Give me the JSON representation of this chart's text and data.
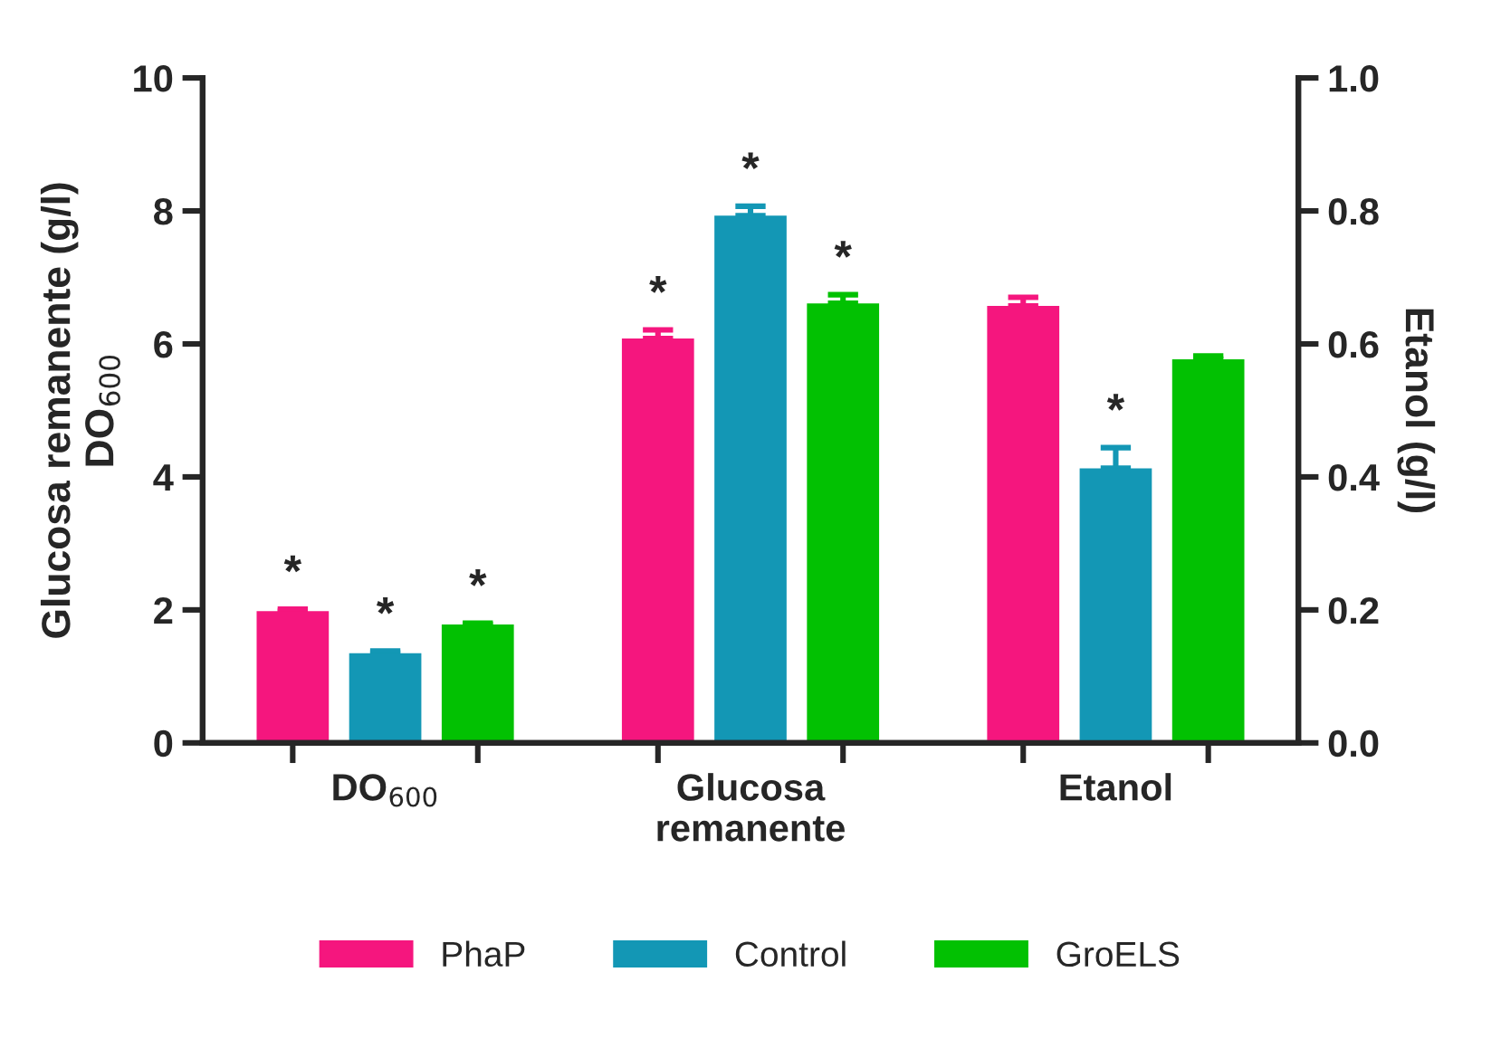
{
  "chart_data": {
    "type": "bar",
    "categories": [
      "DO$_{600}$",
      "Glucosa\nremanente",
      "Etanol"
    ],
    "ylabel": "Glucosa remanente (g/l)\nDO$_{600}$",
    "y2label": "Etanol (g/l)",
    "ylim": [
      0,
      10
    ],
    "yticks": [
      0,
      2,
      4,
      6,
      8,
      10
    ],
    "y2lim": [
      0,
      1.0
    ],
    "y2ticks": [
      {
        "value": 0,
        "label": "0.0"
      },
      0.2,
      0.4,
      0.6,
      0.8,
      {
        "value": 1.0,
        "label": "1.0"
      }
    ],
    "legend": "bottom",
    "grid": false,
    "series": [
      {
        "name": "PhaP",
        "color": "#f5167e",
        "values": [
          1.98,
          6.08,
          null
        ],
        "errors": [
          0.03,
          0.13,
          null
        ],
        "value_labels": [
          "*",
          "*",
          null
        ]
      },
      {
        "name": "Control",
        "color": "#1397b5",
        "values": [
          1.35,
          7.93,
          null
        ],
        "errors": [
          0.03,
          0.14,
          null
        ],
        "value_labels": [
          "*",
          "*",
          null
        ]
      },
      {
        "name": "GroELS",
        "color": "#02c102",
        "values": [
          1.78,
          6.61,
          null
        ],
        "errors": [
          0.02,
          0.13,
          null
        ],
        "value_labels": [
          "*",
          "*",
          null
        ]
      },
      {
        "color": "#f5167e",
        "axis": "y2",
        "values": [
          null,
          null,
          0.657
        ],
        "errors": [
          null,
          null,
          0.013
        ],
        "value_labels": [
          null,
          null,
          null
        ]
      },
      {
        "color": "#1397b5",
        "axis": "y2",
        "values": [
          null,
          null,
          0.413
        ],
        "errors": [
          null,
          null,
          0.031
        ],
        "value_labels": [
          null,
          null,
          "*"
        ]
      },
      {
        "color": "#02c102",
        "axis": "y2",
        "values": [
          null,
          null,
          0.577
        ],
        "errors": [
          null,
          null,
          0.005
        ],
        "value_labels": [
          null,
          null,
          null
        ]
      }
    ]
  }
}
